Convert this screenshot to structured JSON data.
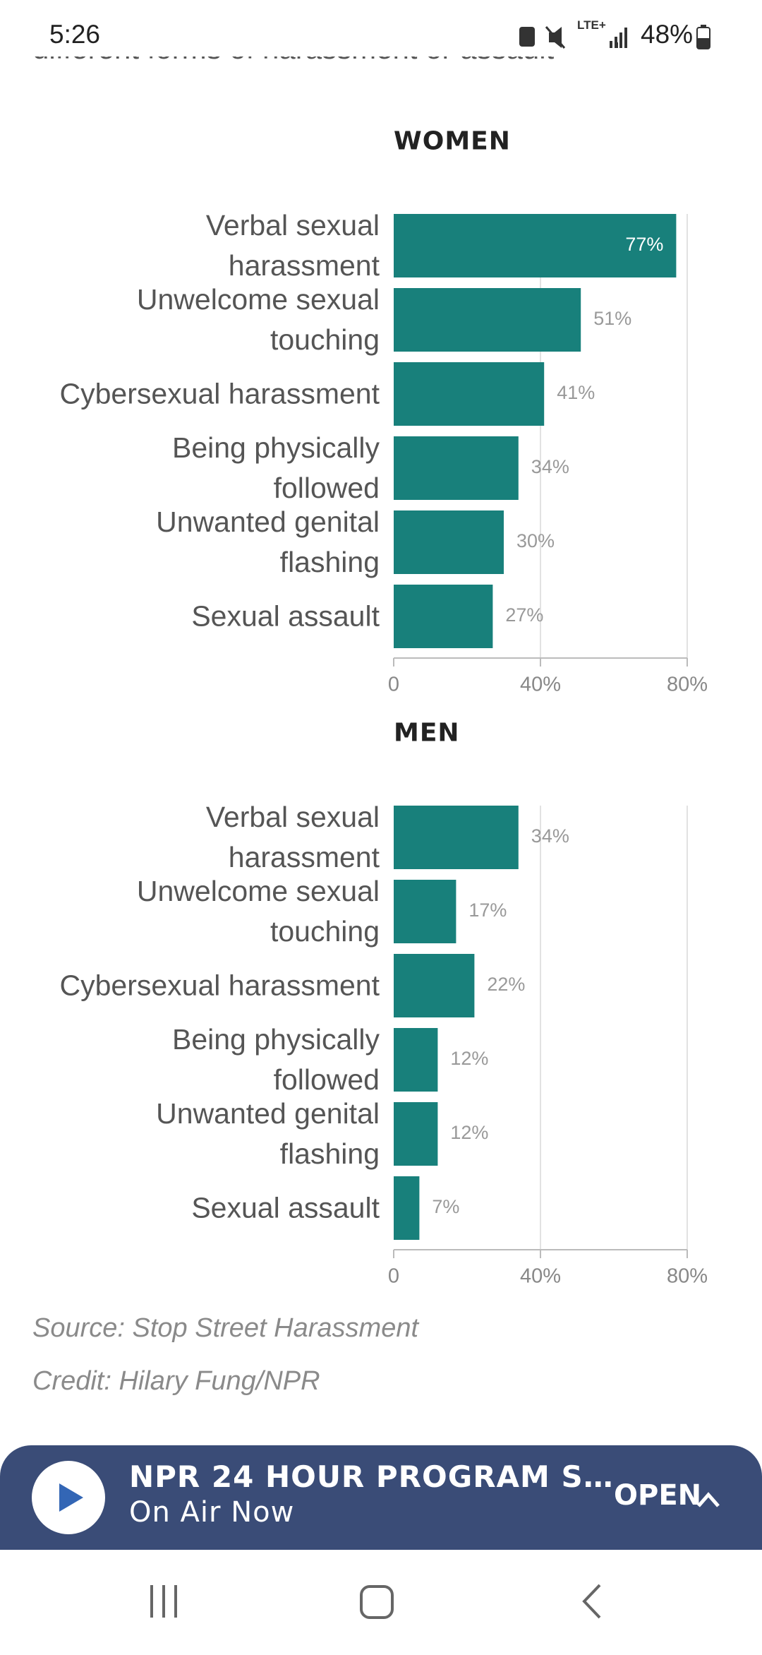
{
  "status_bar": {
    "time": "5:26",
    "network": "LTE+",
    "battery": "48%"
  },
  "article_fragment": "different forms of harassment or assault",
  "chart_data": [
    {
      "type": "bar",
      "orientation": "horizontal",
      "title": "WOMEN",
      "categories": [
        "Verbal sexual\nharassment",
        "Unwelcome sexual\ntouching",
        "Cybersexual harassment",
        "Being physically\nfollowed",
        "Unwanted genital\nflashing",
        "Sexual assault"
      ],
      "values": [
        77,
        51,
        41,
        34,
        30,
        27
      ],
      "value_labels": [
        "77%",
        "51%",
        "41%",
        "34%",
        "30%",
        "27%"
      ],
      "color": "#18807b",
      "xlim": [
        0,
        80
      ],
      "xticks": [
        0,
        {
          "value": 40,
          "label": "40%"
        },
        {
          "value": 80,
          "label": "80%"
        }
      ],
      "grid": true
    },
    {
      "type": "bar",
      "orientation": "horizontal",
      "title": "MEN",
      "categories": [
        "Verbal sexual\nharassment",
        "Unwelcome sexual\ntouching",
        "Cybersexual harassment",
        "Being physically\nfollowed",
        "Unwanted genital\nflashing",
        "Sexual assault"
      ],
      "values": [
        34,
        17,
        22,
        12,
        12,
        7
      ],
      "value_labels": [
        "34%",
        "17%",
        "22%",
        "12%",
        "12%",
        "7%"
      ],
      "color": "#18807b",
      "xlim": [
        0,
        80
      ],
      "xticks": [
        0,
        {
          "value": 40,
          "label": "40%"
        },
        {
          "value": 80,
          "label": "80%"
        }
      ],
      "grid": true
    }
  ],
  "source": "Source: Stop Street Harassment",
  "credit": "Credit: Hilary Fung/NPR",
  "player": {
    "title": "NPR 24 HOUR PROGRAM S…",
    "subtitle": "On Air Now",
    "action": "OPEN"
  }
}
